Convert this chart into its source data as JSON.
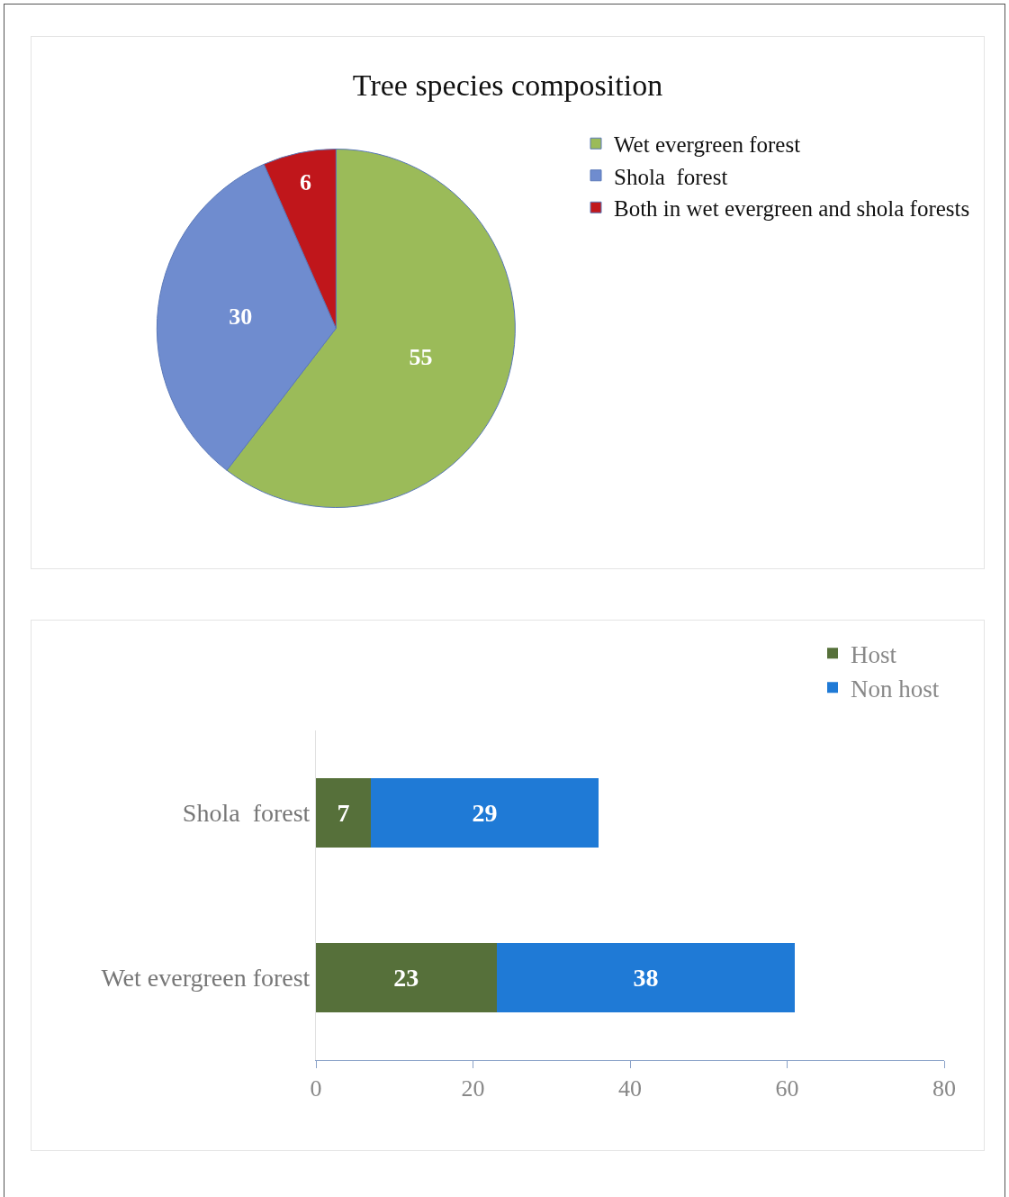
{
  "chart_data": [
    {
      "type": "pie",
      "title": "Tree species composition",
      "categories": [
        "Wet evergreen forest",
        "Shola  forest",
        "Both in wet evergreen and shola forests"
      ],
      "values": [
        55,
        30,
        6
      ],
      "colors": [
        "#9bbb59",
        "#6f8ccf",
        "#c0161b"
      ],
      "data_labels": true,
      "legend": "right"
    },
    {
      "type": "bar",
      "orientation": "horizontal",
      "stacked": true,
      "categories": [
        "Shola  forest",
        "Wet evergreen forest"
      ],
      "series": [
        {
          "name": "Host",
          "color": "#56703a",
          "values": [
            7,
            23
          ]
        },
        {
          "name": "Non host",
          "color": "#1f7ad6",
          "values": [
            29,
            38
          ]
        }
      ],
      "xlim": [
        0,
        80
      ],
      "xticks": [
        0,
        20,
        40,
        60,
        80
      ],
      "data_labels": true,
      "grid": false,
      "legend": "top right"
    }
  ]
}
